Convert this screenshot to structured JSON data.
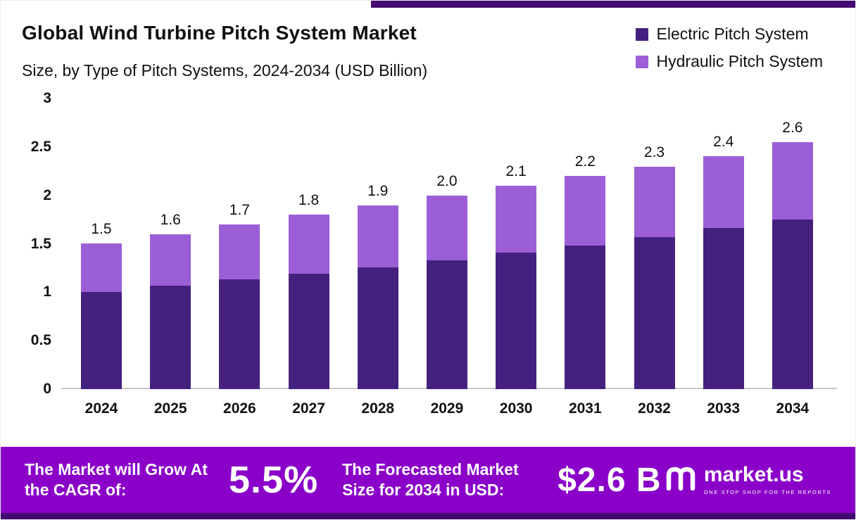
{
  "header": {
    "title": "Global Wind Turbine Pitch System Market",
    "subtitle": "Size, by Type of Pitch Systems, 2024-2034 (USD Billion)"
  },
  "legend": {
    "items": [
      {
        "label": "Electric Pitch System",
        "color": "#45217F"
      },
      {
        "label": "Hydraulic Pitch System",
        "color": "#9C5ED6"
      }
    ]
  },
  "chart_data": {
    "type": "bar",
    "stacked": true,
    "title": "Global Wind Turbine Pitch System Market Size, by Type of Pitch Systems, 2024-2034 (USD Billion)",
    "categories": [
      "2024",
      "2025",
      "2026",
      "2027",
      "2028",
      "2029",
      "2030",
      "2031",
      "2032",
      "2033",
      "2034"
    ],
    "series": [
      {
        "name": "Electric Pitch System",
        "color": "#45217F",
        "values": [
          1.0,
          1.07,
          1.13,
          1.19,
          1.26,
          1.33,
          1.41,
          1.48,
          1.57,
          1.66,
          1.75
        ]
      },
      {
        "name": "Hydraulic Pitch System",
        "color": "#9C5ED6",
        "values": [
          0.5,
          0.53,
          0.57,
          0.61,
          0.64,
          0.67,
          0.69,
          0.72,
          0.73,
          0.74,
          0.8
        ]
      }
    ],
    "totals_display": [
      "1.5",
      "1.6",
      "1.7",
      "1.8",
      "1.9",
      "2.0",
      "2.1",
      "2.2",
      "2.3",
      "2.4",
      "2.6"
    ],
    "xlabel": "",
    "ylabel": "",
    "ylim": [
      0,
      3
    ],
    "yticks": [
      "3",
      "2.5",
      "2",
      "1.5",
      "1",
      "0.5",
      "0"
    ],
    "grid": false,
    "legend_position": "top-right"
  },
  "banner": {
    "cagr_label": "The Market will Grow At the CAGR of:",
    "cagr_value": "5.5%",
    "forecast_label": "The Forecasted Market Size for 2034 in USD:",
    "forecast_value": "$2.6 B",
    "brand": {
      "name": "market.us",
      "tagline": "ONE STOP SHOP FOR THE REPORTS"
    }
  },
  "colors": {
    "banner_bg": "#8A00C8",
    "strip": "#430A71",
    "axis_line": "#c9c9c9",
    "text_on_banner": "#ffffff"
  }
}
